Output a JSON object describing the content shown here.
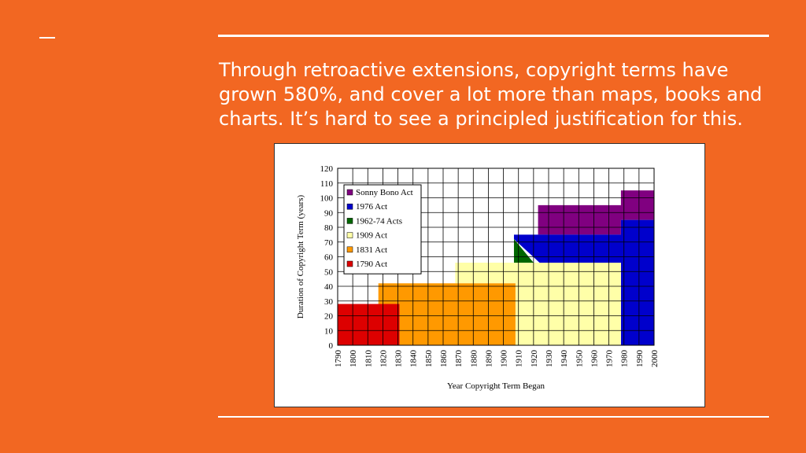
{
  "slide": {
    "headline": "Through retroactive extensions, copyright terms have grown 580%, and cover a lot more than maps, books and charts. It’s hard to see a principled justification for this."
  },
  "colors": {
    "background": "#f26722",
    "rule": "#ffffff"
  },
  "chart_data": {
    "type": "area",
    "title": "",
    "xlabel": "Year Copyright Term Began",
    "ylabel": "Duration of Copyright Term (years)",
    "xlim": [
      1790,
      2000
    ],
    "ylim": [
      0,
      120
    ],
    "x_ticks": [
      "1790",
      "1800",
      "1810",
      "1820",
      "1830",
      "1840",
      "1850",
      "1860",
      "1870",
      "1880",
      "1890",
      "1900",
      "1910",
      "1920",
      "1930",
      "1940",
      "1950",
      "1960",
      "1970",
      "1980",
      "1990",
      "2000"
    ],
    "y_ticks": [
      "0",
      "10",
      "20",
      "30",
      "40",
      "50",
      "60",
      "70",
      "80",
      "90",
      "100",
      "110",
      "120"
    ],
    "grid": true,
    "legend_position": "top-left",
    "series": [
      {
        "name": "Sonny Bono Act",
        "color": "#800080",
        "points": [
          [
            1923,
            75
          ],
          [
            1923,
            95
          ],
          [
            1978,
            95
          ],
          [
            1978,
            105
          ],
          [
            2000,
            105
          ],
          [
            2000,
            85
          ],
          [
            1978,
            85
          ],
          [
            1978,
            75
          ]
        ]
      },
      {
        "name": "1976 Act",
        "color": "#0000cc",
        "points": [
          [
            1907,
            75
          ],
          [
            1978,
            75
          ],
          [
            1978,
            85
          ],
          [
            2000,
            85
          ],
          [
            2000,
            0
          ],
          [
            1978,
            0
          ],
          [
            1978,
            56
          ],
          [
            1924,
            56
          ],
          [
            1907,
            72
          ]
        ]
      },
      {
        "name": "1962-74 Acts",
        "color": "#006600",
        "points": [
          [
            1907,
            56
          ],
          [
            1907,
            72
          ],
          [
            1920,
            56
          ]
        ]
      },
      {
        "name": "1909 Act",
        "color": "#ffffa8",
        "points": [
          [
            1868,
            56
          ],
          [
            1978,
            56
          ],
          [
            1978,
            0
          ],
          [
            1908,
            0
          ],
          [
            1908,
            42
          ],
          [
            1868,
            42
          ]
        ]
      },
      {
        "name": "1831 Act",
        "color": "#ff9900",
        "points": [
          [
            1817,
            42
          ],
          [
            1908,
            42
          ],
          [
            1908,
            0
          ],
          [
            1831,
            0
          ],
          [
            1831,
            28
          ],
          [
            1817,
            28
          ]
        ]
      },
      {
        "name": "1790 Act",
        "color": "#dd0000",
        "points": [
          [
            1790,
            0
          ],
          [
            1790,
            28
          ],
          [
            1831,
            28
          ],
          [
            1831,
            0
          ]
        ]
      }
    ],
    "legend_order": [
      "Sonny Bono Act",
      "1976 Act",
      "1962-74 Acts",
      "1909 Act",
      "1831 Act",
      "1790 Act"
    ]
  }
}
